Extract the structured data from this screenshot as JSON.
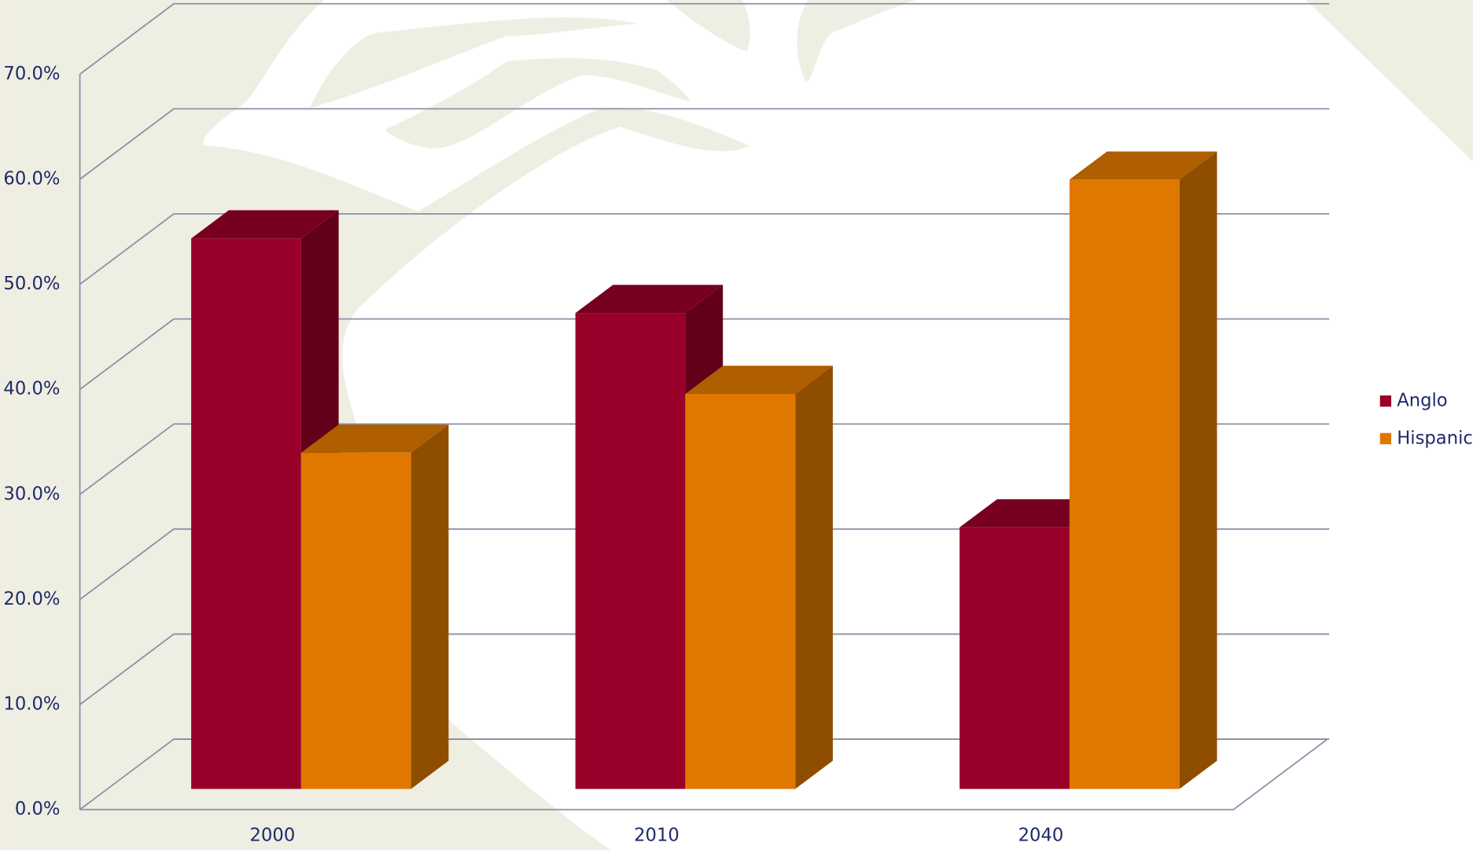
{
  "chart_data": {
    "type": "bar3d",
    "categories": [
      "2000",
      "2010",
      "2040"
    ],
    "series": [
      {
        "name": "Anglo",
        "color": "#990029",
        "values": [
          52.4,
          45.3,
          24.9
        ]
      },
      {
        "name": "Hispanic",
        "color": "#e07800",
        "values": [
          32.0,
          37.6,
          58.0
        ]
      }
    ],
    "ylim": [
      0,
      70
    ],
    "yticks": [
      {
        "value": 0,
        "label": "0.0%"
      },
      {
        "value": 10,
        "label": "10.0%"
      },
      {
        "value": 20,
        "label": "20.0%"
      },
      {
        "value": 30,
        "label": "30.0%"
      },
      {
        "value": 40,
        "label": "40.0%"
      },
      {
        "value": 50,
        "label": "50.0%"
      },
      {
        "value": 60,
        "label": "60.0%"
      },
      {
        "value": 70,
        "label": "70.0%"
      }
    ],
    "grid": true,
    "legend": "right"
  }
}
